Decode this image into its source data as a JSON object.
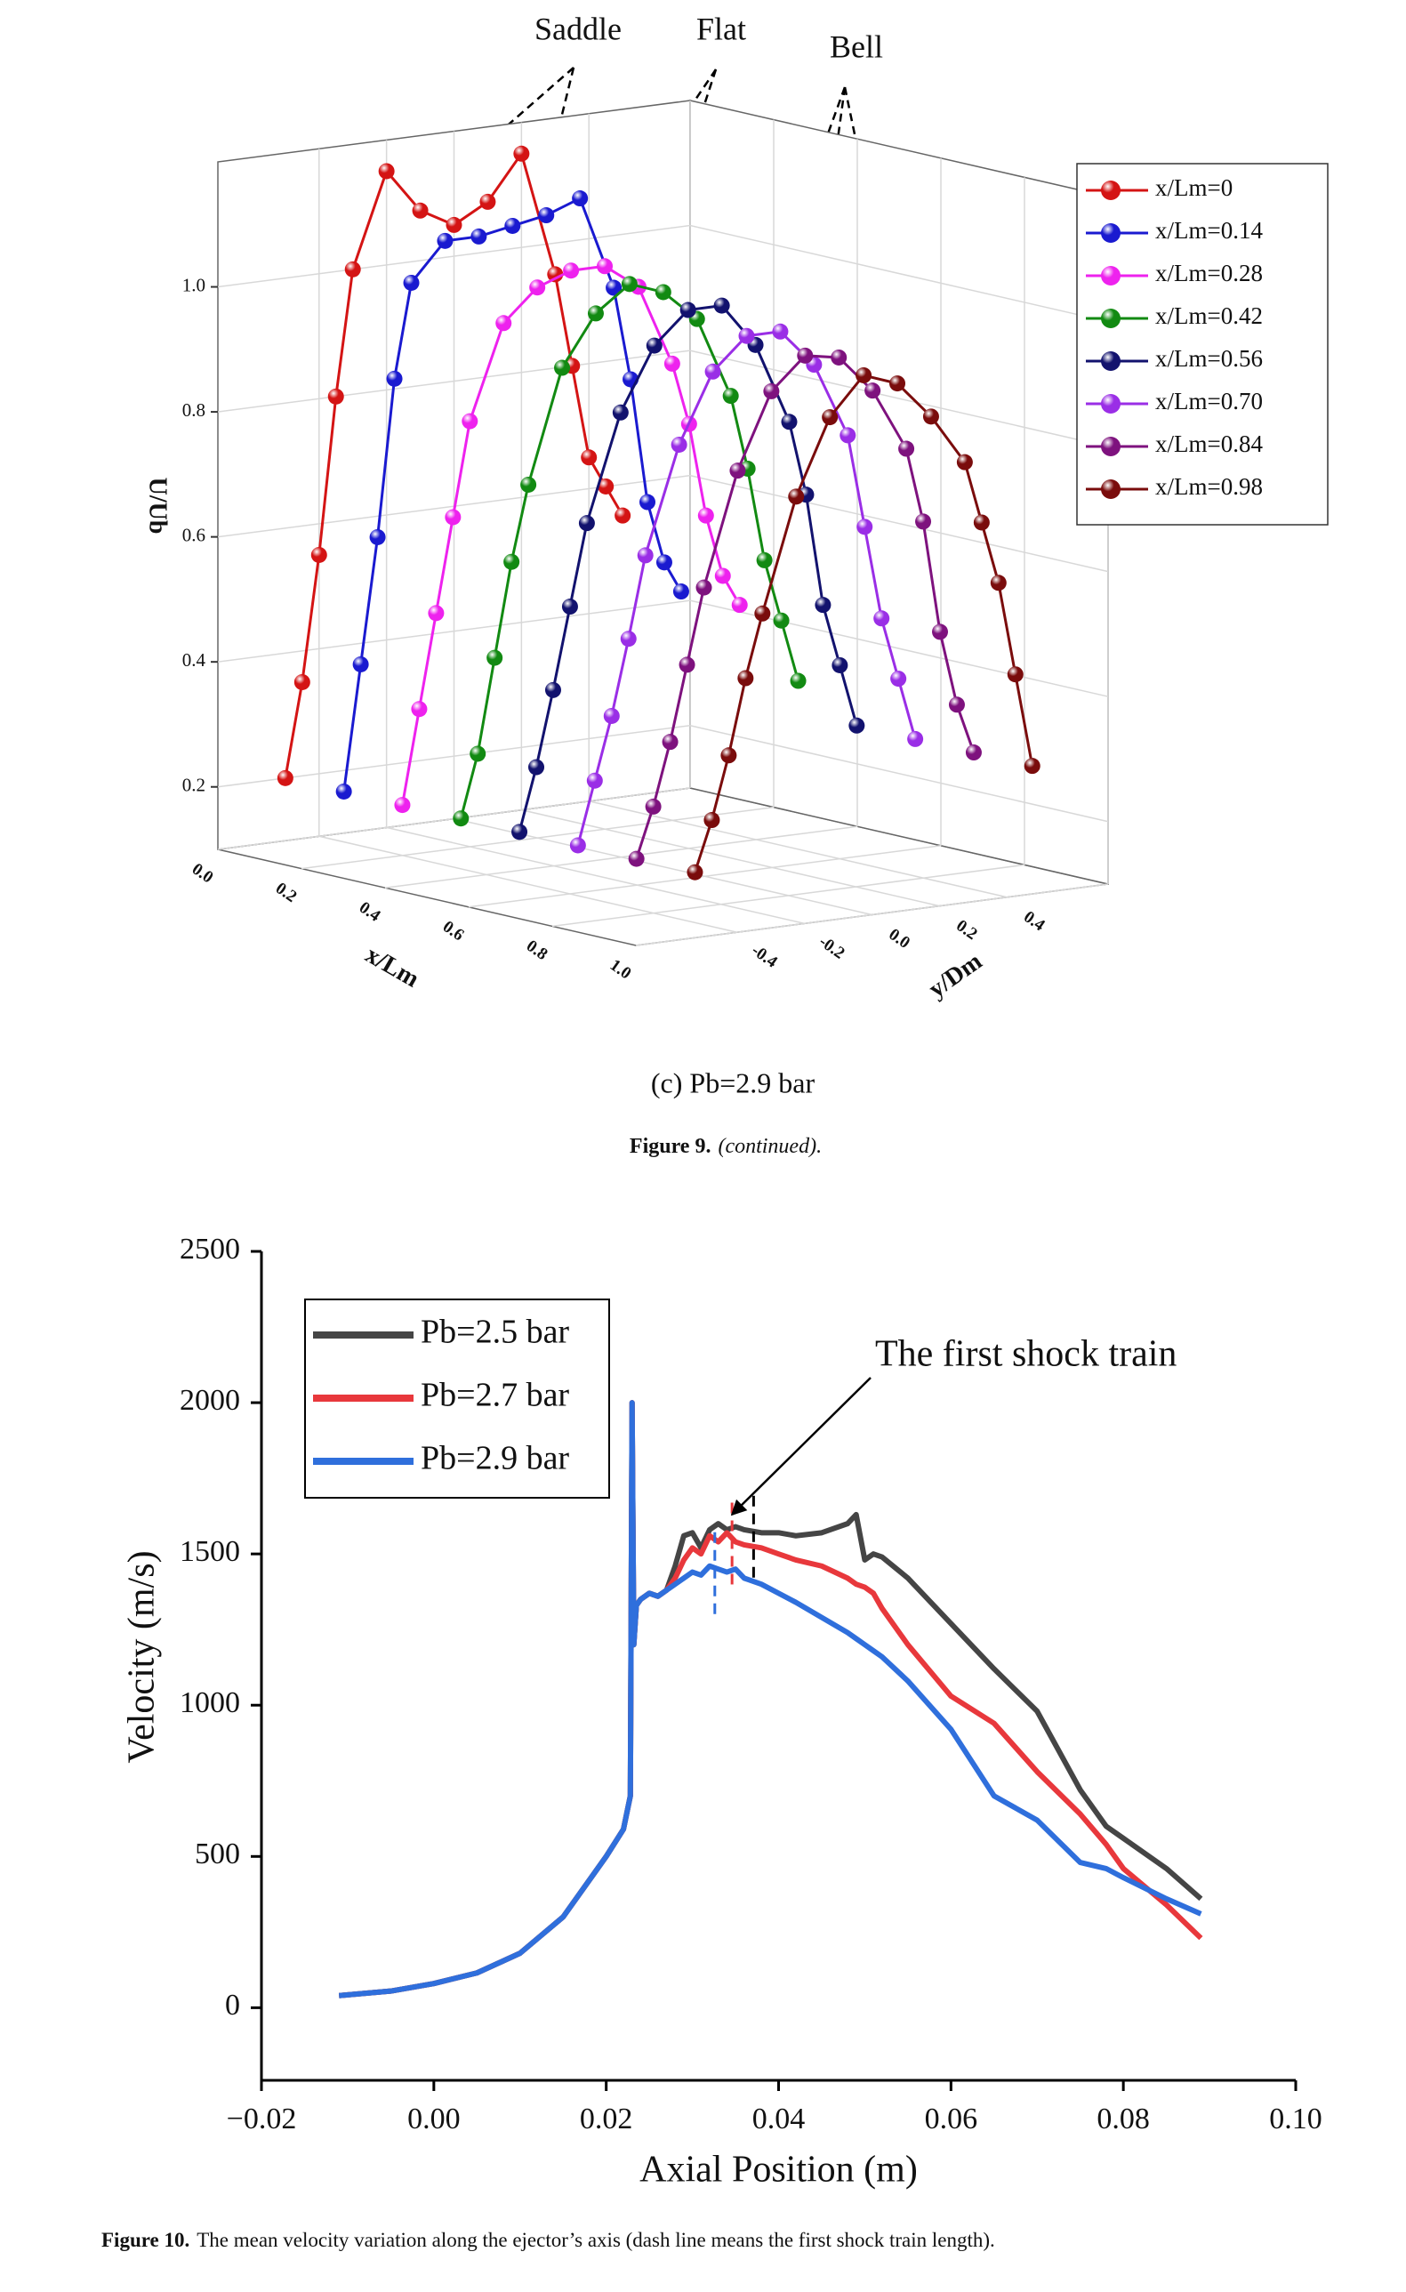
{
  "chart_data": [
    {
      "type": "line3d",
      "annotations": [
        "Saddle",
        "Flat",
        "Bell"
      ],
      "xlabel": "x/Lm",
      "ylabel": "y/Dm",
      "zlabel": "U/Ub",
      "xlim": [
        0,
        1
      ],
      "ylim": [
        -0.7,
        0.7
      ],
      "zlim": [
        0.1,
        1.2
      ],
      "xticks": [
        {
          "value": 0,
          "label": "0.0"
        },
        0.2,
        0.4,
        0.6,
        0.8,
        {
          "value": 1,
          "label": "1.0"
        }
      ],
      "yticks": [
        -0.4,
        -0.2,
        {
          "value": 0,
          "label": "0.0"
        },
        0.2,
        0.4
      ],
      "zticks": [
        0.2,
        0.4,
        0.6,
        0.8,
        {
          "value": 1,
          "label": "1.0"
        }
      ],
      "y": [
        -0.5,
        -0.45,
        -0.4,
        -0.35,
        -0.3,
        -0.2,
        -0.1,
        0,
        0.1,
        0.2,
        0.3,
        0.35,
        0.4,
        0.45,
        0.5
      ],
      "series": [
        {
          "name": "x/Lm=0",
          "x": 0,
          "color": "#d41414",
          "values": [
            0.2,
            0.35,
            0.55,
            0.8,
            1.0,
            1.15,
            1.08,
            1.05,
            1.08,
            1.15,
            0.95,
            0.8,
            0.65,
            0.6,
            0.55
          ]
        },
        {
          "name": "x/Lm=0.14",
          "x": 0.14,
          "color": "#1a1ad0",
          "values": [
            0.2,
            0.4,
            0.6,
            0.85,
            1.0,
            1.06,
            1.06,
            1.07,
            1.08,
            1.1,
            0.95,
            0.8,
            0.6,
            0.5,
            0.45
          ]
        },
        {
          "name": "x/Lm=0.28",
          "x": 0.28,
          "color": "#ee22ee",
          "values": [
            0.2,
            0.35,
            0.5,
            0.65,
            0.8,
            0.95,
            1.0,
            1.02,
            1.02,
            0.98,
            0.85,
            0.75,
            0.6,
            0.5,
            0.45
          ]
        },
        {
          "name": "x/Lm=0.42",
          "x": 0.42,
          "color": "#128a12",
          "values": [
            0.2,
            0.3,
            0.45,
            0.6,
            0.72,
            0.9,
            0.98,
            1.02,
            1.0,
            0.95,
            0.82,
            0.7,
            0.55,
            0.45,
            0.35
          ]
        },
        {
          "name": "x/Lm=0.56",
          "x": 0.56,
          "color": "#12126e",
          "values": [
            0.2,
            0.3,
            0.42,
            0.55,
            0.68,
            0.85,
            0.95,
            1.0,
            1.0,
            0.93,
            0.8,
            0.68,
            0.5,
            0.4,
            0.3
          ]
        },
        {
          "name": "x/Lm=0.70",
          "x": 0.7,
          "color": "#9a2ee6",
          "values": [
            0.2,
            0.3,
            0.4,
            0.52,
            0.65,
            0.82,
            0.93,
            0.98,
            0.98,
            0.92,
            0.8,
            0.65,
            0.5,
            0.4,
            0.3
          ]
        },
        {
          "name": "x/Lm=0.84",
          "x": 0.84,
          "color": "#7e127e",
          "values": [
            0.2,
            0.28,
            0.38,
            0.5,
            0.62,
            0.8,
            0.92,
            0.97,
            0.96,
            0.9,
            0.8,
            0.68,
            0.5,
            0.38,
            0.3
          ]
        },
        {
          "name": "x/Lm=0.98",
          "x": 0.98,
          "color": "#7a0c0c",
          "values": [
            0.2,
            0.28,
            0.38,
            0.5,
            0.6,
            0.78,
            0.9,
            0.96,
            0.94,
            0.88,
            0.8,
            0.7,
            0.6,
            0.45,
            0.3
          ]
        }
      ],
      "subtitle": "(c)  Pb=2.9 bar",
      "caption_label": "Figure 9.",
      "caption_text": "(continued)."
    },
    {
      "type": "line",
      "xlabel": "Axial Position (m)",
      "ylabel": "Velocity (m/s)",
      "annotation": "The first shock train",
      "xlim": [
        -0.02,
        0.1
      ],
      "ylim": [
        -240,
        2500
      ],
      "xticks": [
        {
          "value": -0.02,
          "label": "−0.02"
        },
        {
          "value": 0,
          "label": "0.00"
        },
        {
          "value": 0.02,
          "label": "0.02"
        },
        {
          "value": 0.04,
          "label": "0.04"
        },
        {
          "value": 0.06,
          "label": "0.06"
        },
        {
          "value": 0.08,
          "label": "0.08"
        },
        {
          "value": 0.1,
          "label": "0.10"
        }
      ],
      "yticks": [
        0,
        500,
        1000,
        1500,
        2000,
        2500
      ],
      "x": [
        -0.011,
        -0.005,
        0,
        0.005,
        0.01,
        0.015,
        0.018,
        0.02,
        0.022,
        0.0228,
        0.023,
        0.0232,
        0.0235,
        0.024,
        0.025,
        0.026,
        0.027,
        0.028,
        0.029,
        0.03,
        0.031,
        0.032,
        0.033,
        0.034,
        0.035,
        0.036,
        0.038,
        0.04,
        0.042,
        0.045,
        0.048,
        0.049,
        0.05,
        0.051,
        0.052,
        0.055,
        0.06,
        0.065,
        0.07,
        0.075,
        0.078,
        0.08,
        0.085,
        0.089
      ],
      "series": [
        {
          "name": "Pb=2.5 bar",
          "color": "#454545",
          "shock_train_x": 0.0371,
          "values": [
            40,
            55,
            80,
            115,
            180,
            300,
            420,
            500,
            590,
            700,
            2000,
            1200,
            1330,
            1350,
            1370,
            1360,
            1380,
            1460,
            1560,
            1570,
            1520,
            1580,
            1600,
            1580,
            1590,
            1580,
            1570,
            1570,
            1560,
            1570,
            1600,
            1630,
            1480,
            1500,
            1490,
            1420,
            1270,
            1120,
            980,
            720,
            600,
            560,
            460,
            360
          ]
        },
        {
          "name": "Pb=2.7 bar",
          "color": "#e8383c",
          "shock_train_x": 0.0346,
          "values": [
            40,
            55,
            80,
            115,
            180,
            300,
            420,
            500,
            590,
            700,
            2000,
            1200,
            1330,
            1350,
            1370,
            1360,
            1380,
            1420,
            1480,
            1520,
            1500,
            1560,
            1540,
            1570,
            1540,
            1530,
            1520,
            1500,
            1480,
            1460,
            1420,
            1400,
            1390,
            1370,
            1320,
            1200,
            1030,
            940,
            780,
            640,
            540,
            460,
            340,
            230
          ]
        },
        {
          "name": "Pb=2.9 bar",
          "color": "#2f6fdc",
          "shock_train_x": 0.0326,
          "values": [
            40,
            55,
            80,
            115,
            180,
            300,
            420,
            500,
            590,
            700,
            2000,
            1200,
            1330,
            1350,
            1370,
            1360,
            1380,
            1400,
            1420,
            1440,
            1430,
            1460,
            1450,
            1440,
            1450,
            1420,
            1400,
            1370,
            1340,
            1290,
            1240,
            1220,
            1200,
            1180,
            1160,
            1080,
            920,
            700,
            620,
            480,
            460,
            430,
            360,
            310
          ]
        }
      ],
      "caption_label": "Figure 10.",
      "caption_text": "The mean velocity variation along the ejector’s axis (dash line means the first shock train length)."
    }
  ]
}
